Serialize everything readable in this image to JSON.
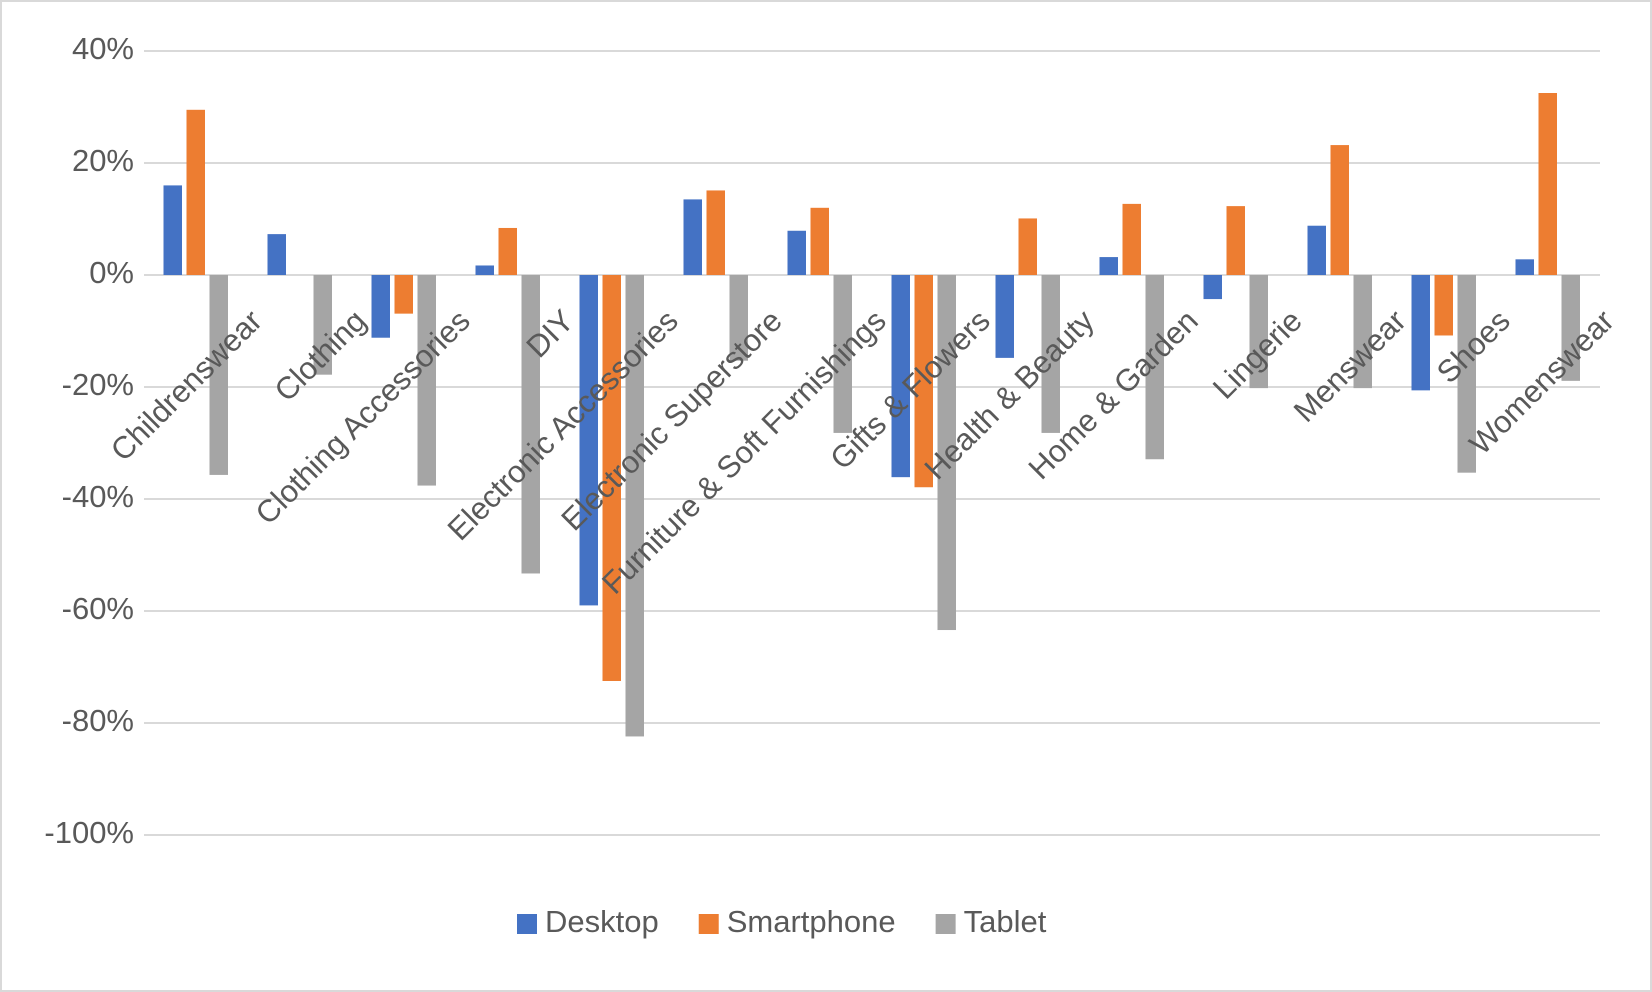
{
  "chart_data": {
    "type": "bar",
    "categories": [
      "Childrenswear",
      "Clothing",
      "Clothing Accessories",
      "DIY",
      "Electronic Accessories",
      "Electronic Superstore",
      "Furniture & Soft Furnishings",
      "Gifts & Flowers",
      "Health & Beauty",
      "Home & Garden",
      "Lingerie",
      "Menswear",
      "Shoes",
      "Womenswear"
    ],
    "series": [
      {
        "name": "Desktop",
        "color": "#4472c4",
        "values": [
          16,
          7.3,
          -11.2,
          1.7,
          -59,
          13.5,
          7.9,
          -36.1,
          -14.8,
          3.2,
          -4.3,
          8.8,
          -20.6,
          2.8
        ]
      },
      {
        "name": "Smartphone",
        "color": "#ed7d31",
        "values": [
          29.5,
          0,
          -6.9,
          8.4,
          -72.5,
          15.1,
          12,
          -37.9,
          10.1,
          12.7,
          12.3,
          23.2,
          -10.8,
          32.5
        ]
      },
      {
        "name": "Tablet",
        "color": "#a5a5a5",
        "values": [
          -35.7,
          -17.8,
          -37.6,
          -53.3,
          -82.4,
          -15.3,
          -28.2,
          -63.4,
          -28.2,
          -32.9,
          -20.2,
          -20.2,
          -35.3,
          -18.9
        ]
      }
    ],
    "ylim": [
      -100,
      40
    ],
    "yticks": [
      {
        "value": -100,
        "label": "-100%"
      },
      {
        "value": -80,
        "label": "-80%"
      },
      {
        "value": -60,
        "label": "-60%"
      },
      {
        "value": -40,
        "label": "-40%"
      },
      {
        "value": -20,
        "label": "-20%"
      },
      {
        "value": 0,
        "label": "0%"
      },
      {
        "value": 20,
        "label": "20%"
      },
      {
        "value": 40,
        "label": "40%"
      }
    ],
    "grid": true,
    "legend": "bottom"
  }
}
